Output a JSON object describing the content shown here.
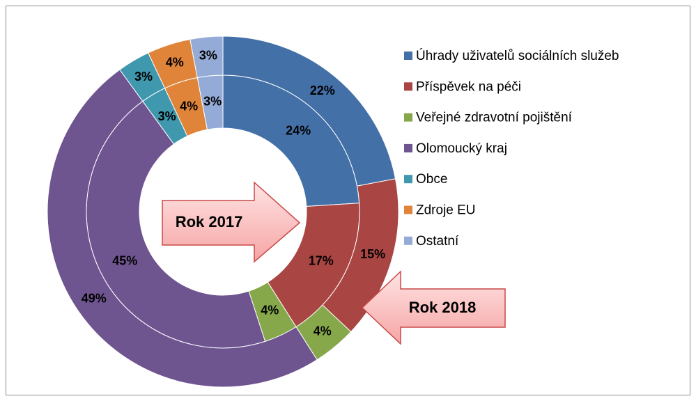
{
  "chart_data": {
    "type": "doughnut",
    "categories": [
      "Úhrady uživatelů sociálních služeb",
      "Příspěvek na péči",
      "Veřejné zdravotní pojištění",
      "Olomoucký kraj",
      "Obce",
      "Zdroje EU",
      "Ostatní"
    ],
    "colors": [
      "#4470a8",
      "#a94543",
      "#86a84a",
      "#6f5590",
      "#3f98ae",
      "#e0843a",
      "#93abd6"
    ],
    "series": [
      {
        "name": "Rok 2017",
        "values": [
          24,
          17,
          4,
          45,
          3,
          4,
          3
        ],
        "value_labels": [
          "24%",
          "17%",
          "4%",
          "45%",
          "3%",
          "4%",
          "3%"
        ]
      },
      {
        "name": "Rok 2018",
        "values": [
          22,
          15,
          4,
          49,
          3,
          4,
          3
        ],
        "value_labels": [
          "22%",
          "15%",
          "4%",
          "49%",
          "3%",
          "4%",
          "3%"
        ]
      }
    ],
    "legend": "right"
  }
}
